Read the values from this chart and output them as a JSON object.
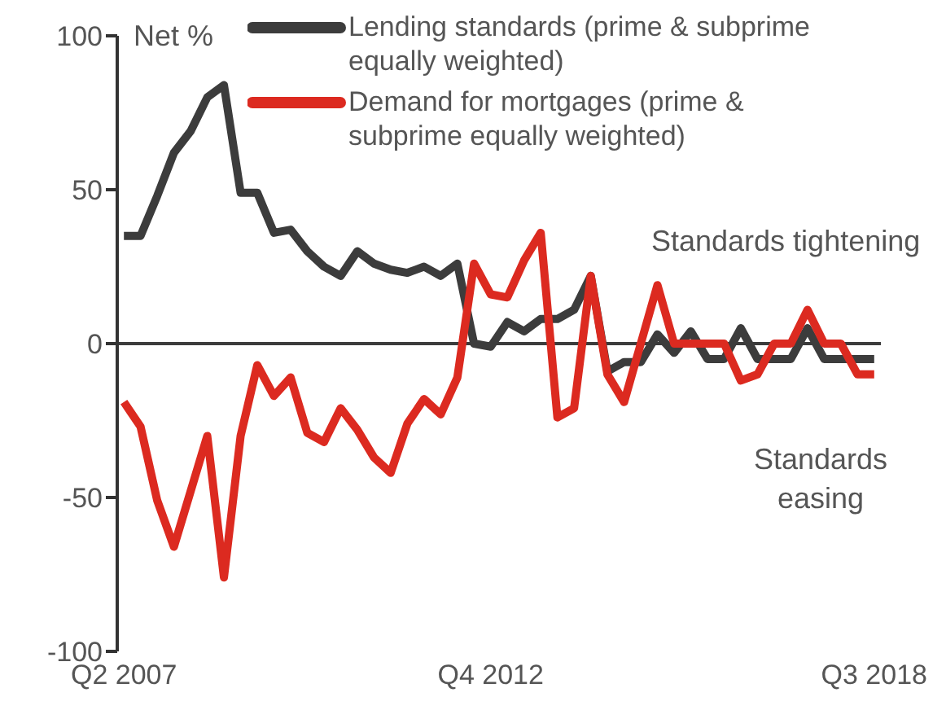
{
  "chart_data": {
    "type": "line",
    "ylabel": "Net %",
    "categories": [
      "Q2 2007",
      null,
      null,
      null,
      null,
      null,
      null,
      null,
      null,
      null,
      null,
      null,
      null,
      null,
      null,
      null,
      null,
      null,
      null,
      null,
      null,
      null,
      "Q4 2012",
      null,
      null,
      null,
      null,
      null,
      null,
      null,
      null,
      null,
      null,
      null,
      null,
      null,
      null,
      null,
      null,
      null,
      null,
      null,
      null,
      null,
      null,
      "Q3 2018"
    ],
    "series": [
      {
        "name": "Lending standards (prime & subprime equally weighted)",
        "color": "#3c3c3c",
        "values": [
          35,
          35,
          48,
          62,
          69,
          80,
          84,
          49,
          49,
          36,
          37,
          30,
          25,
          22,
          30,
          26,
          24,
          23,
          25,
          22,
          26,
          0,
          -1,
          7,
          4,
          8,
          8,
          11,
          22,
          -9,
          -6,
          -6,
          3,
          -3,
          4,
          -5,
          -5,
          5,
          -5,
          -5,
          -5,
          5,
          -5,
          -5,
          -5,
          -5
        ]
      },
      {
        "name": "Demand for mortgages  (prime & subprime equally weighted)",
        "color": "#dc2a20",
        "values": [
          -19,
          -27,
          -51,
          -66,
          -48,
          -30,
          -76,
          -30,
          -7,
          -17,
          -11,
          -29,
          -32,
          -21,
          -28,
          -37,
          -42,
          -26,
          -18,
          -23,
          -11,
          26,
          16,
          15,
          27,
          36,
          -24,
          -21,
          22,
          -10,
          -19,
          0,
          19,
          0,
          0,
          0,
          0,
          -12,
          -10,
          0,
          0,
          11,
          0,
          0,
          -10,
          -10
        ]
      }
    ],
    "ylim": [
      -100,
      100
    ],
    "yticks": [
      -100,
      -50,
      0,
      50,
      100
    ],
    "ref_lines": [
      {
        "axis": "y",
        "value": 0,
        "color": "#3c3c3c"
      }
    ],
    "annotations": [
      "Standards tightening",
      "Standards\neasing"
    ],
    "legend": "top",
    "grid": false,
    "marker": "none",
    "line_style": "solid"
  }
}
